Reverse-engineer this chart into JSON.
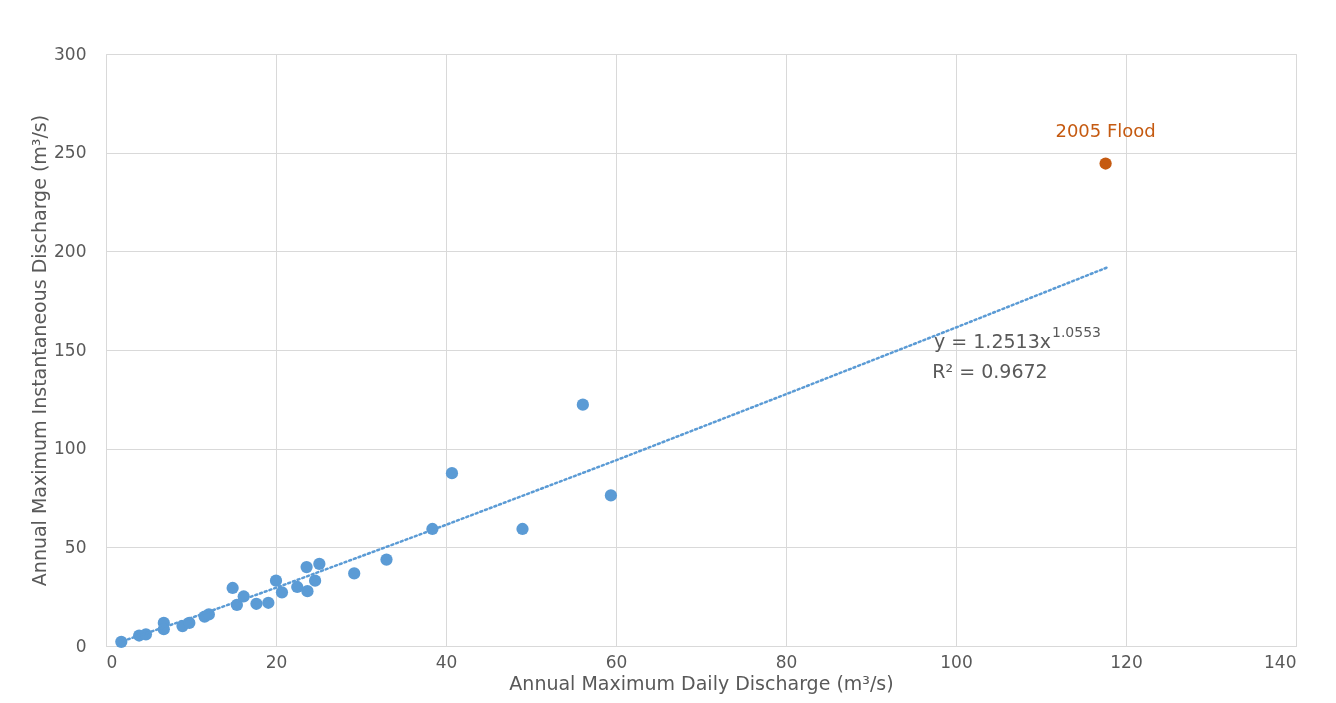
{
  "chart_data": {
    "type": "scatter",
    "xlabel": "Annual Maximum Daily Discharge (m³/s)",
    "ylabel": "Annual Maximum Instantaneous Discharge (m³/s)",
    "xlim": [
      0,
      140
    ],
    "xticks": [
      0,
      20,
      40,
      60,
      80,
      100,
      120,
      140
    ],
    "ylim": [
      0,
      300
    ],
    "yticks": [
      0,
      50,
      100,
      150,
      200,
      250,
      300
    ],
    "grid": true,
    "marker": "circle",
    "series": [
      {
        "color": "#5b9bd5",
        "x": [
          1.8,
          3.9,
          4.7,
          6.8,
          6.8,
          9.0,
          9.8,
          11.6,
          12.1,
          14.9,
          15.4,
          16.2,
          17.7,
          19.1,
          20.0,
          20.7,
          22.5,
          23.6,
          25.1,
          24.6,
          23.7,
          29.2,
          33.0,
          38.4,
          40.7,
          56.1,
          49.0,
          59.4
        ],
        "values": [
          2.1,
          5.3,
          5.9,
          11.7,
          8.5,
          10.1,
          11.7,
          14.9,
          16.0,
          29.4,
          20.8,
          25.1,
          21.4,
          21.9,
          33.1,
          27.2,
          29.9,
          40.0,
          41.6,
          33.1,
          27.8,
          36.8,
          43.8,
          59.3,
          87.6,
          122.3,
          59.3,
          76.3
        ]
      },
      {
        "name": "2005 Flood",
        "color": "#c55a11",
        "x": [
          117.6
        ],
        "values": [
          244.5
        ]
      },
      {
        "type": "line",
        "line_style": "dotted",
        "marker": "none",
        "color": "#5b9bd5",
        "x": [
          2,
          5,
          10,
          20,
          40,
          60,
          80,
          100,
          118
        ],
        "values": [
          2.6,
          6.8,
          14.2,
          29.5,
          61.4,
          94.1,
          127.6,
          161.4,
          192.2
        ]
      }
    ],
    "annotations": [
      "y = 1.2513x$^{1.0553}$",
      "R² = 0.9672"
    ]
  }
}
